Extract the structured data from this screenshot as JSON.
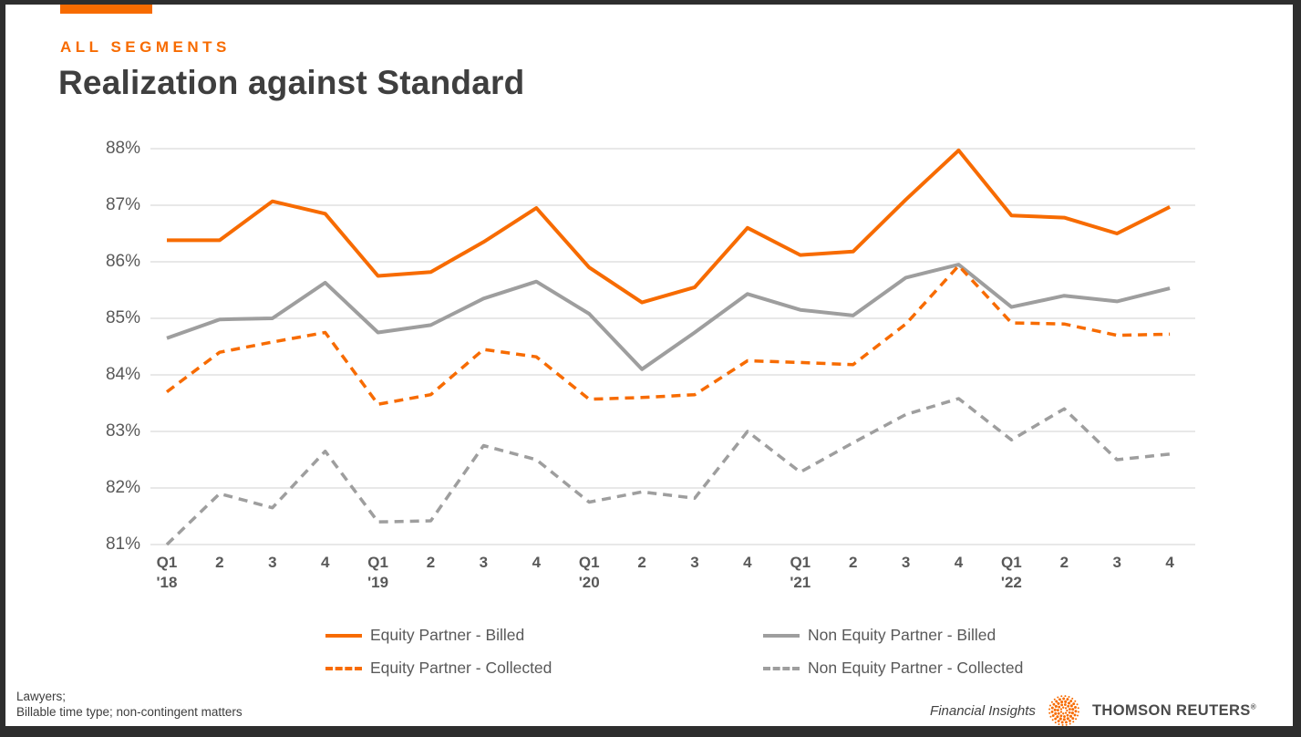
{
  "colors": {
    "accent": "#F76B00",
    "gray_series": "#9E9E9E",
    "gridline": "#D9D9D9",
    "frame": "#2E2E2E",
    "title_text": "#3F3F3F",
    "axis_text": "#595959"
  },
  "header": {
    "kicker": "ALL SEGMENTS",
    "title": "Realization against Standard"
  },
  "chart_data": {
    "type": "line",
    "title": "Realization against Standard",
    "ylim": [
      81,
      88
    ],
    "ytick_step": 1,
    "ytick_suffix": "%",
    "grid": true,
    "legend_position": "bottom",
    "categories": [
      "Q1 '18",
      "2",
      "3",
      "4",
      "Q1 '19",
      "2",
      "3",
      "4",
      "Q1 '20",
      "2",
      "3",
      "4",
      "Q1 '21",
      "2",
      "3",
      "4",
      "Q1 '22",
      "2",
      "3",
      "4"
    ],
    "series": [
      {
        "name": "Equity Partner - Billed",
        "color": "#F76B00",
        "style": "solid",
        "values": [
          86.38,
          86.38,
          87.07,
          86.85,
          85.75,
          85.82,
          86.35,
          86.95,
          85.9,
          85.28,
          85.55,
          86.6,
          86.12,
          86.18,
          87.1,
          87.97,
          86.82,
          86.78,
          86.5,
          86.97
        ]
      },
      {
        "name": "Non Equity Partner - Billed",
        "color": "#9E9E9E",
        "style": "solid",
        "values": [
          84.65,
          84.98,
          85.0,
          85.63,
          84.75,
          84.88,
          85.35,
          85.65,
          85.08,
          84.1,
          84.75,
          85.43,
          85.15,
          85.05,
          85.72,
          85.95,
          85.2,
          85.4,
          85.3,
          85.53
        ]
      },
      {
        "name": "Equity Partner - Collected",
        "color": "#F76B00",
        "style": "dashed",
        "values": [
          83.7,
          84.4,
          84.58,
          84.75,
          83.48,
          83.65,
          84.45,
          84.32,
          83.57,
          83.6,
          83.65,
          84.25,
          84.22,
          84.18,
          84.9,
          85.93,
          84.92,
          84.9,
          84.7,
          84.72
        ]
      },
      {
        "name": "Non Equity Partner - Collected",
        "color": "#9E9E9E",
        "style": "dashed",
        "values": [
          81.0,
          81.9,
          81.65,
          82.65,
          81.4,
          81.42,
          82.75,
          82.5,
          81.75,
          81.93,
          81.82,
          83.0,
          82.28,
          82.8,
          83.3,
          83.58,
          82.85,
          83.4,
          82.5,
          82.6
        ]
      }
    ]
  },
  "footer": {
    "footnote_line1": "Lawyers;",
    "footnote_line2": "Billable time type; non-contingent matters",
    "insights_label": "Financial Insights",
    "brand_name": "THOMSON REUTERS",
    "registered_mark": "®"
  }
}
